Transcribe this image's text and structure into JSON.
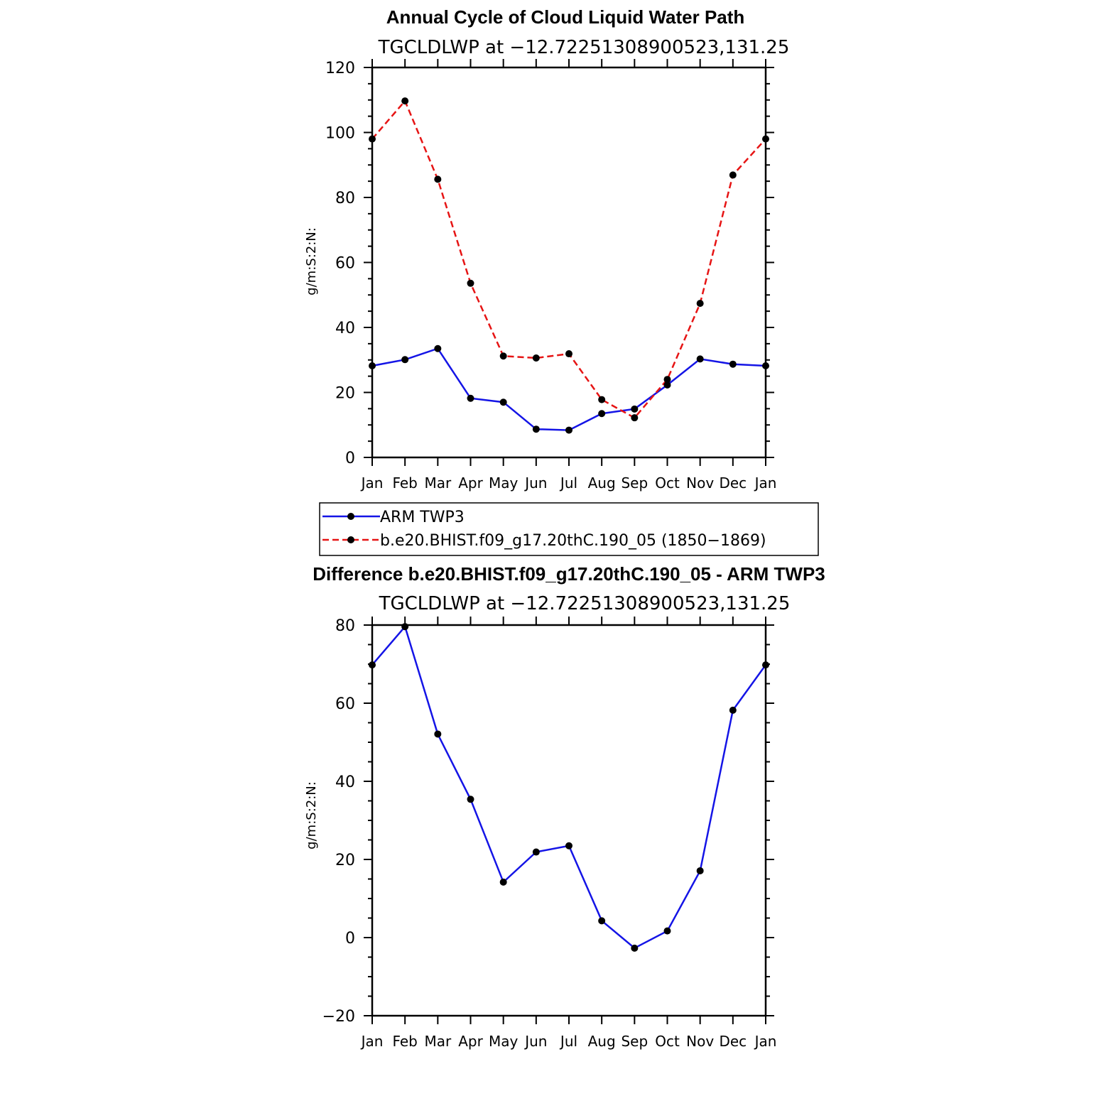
{
  "colors": {
    "obs": "#1414e6",
    "model": "#e61414",
    "marker": "#000000",
    "axis": "#000000"
  },
  "chart_data": [
    {
      "type": "line",
      "title": "Annual Cycle of Cloud Liquid Water Path",
      "subtitle": "TGCLDLWP  at  −12.72251308900523,131.25",
      "ylabel": "g/m:S:2:N:",
      "xlabel": "",
      "categories": [
        "Jan",
        "Feb",
        "Mar",
        "Apr",
        "May",
        "Jun",
        "Jul",
        "Aug",
        "Sep",
        "Oct",
        "Nov",
        "Dec",
        "Jan"
      ],
      "ylim": [
        0,
        120
      ],
      "yticks": [
        0,
        20,
        40,
        60,
        80,
        100,
        120
      ],
      "ytick_labels": [
        "0",
        "20",
        "40",
        "60",
        "80",
        "100",
        "120"
      ],
      "grid": false,
      "legend_placement": "below",
      "series": [
        {
          "name": "ARM TWP3",
          "style": "solid",
          "color": "#1414e6",
          "values": [
            28.2,
            30.1,
            33.5,
            18.2,
            17.0,
            8.7,
            8.4,
            13.5,
            14.9,
            22.3,
            30.3,
            28.7,
            28.2
          ]
        },
        {
          "name": "b.e20.BHIST.f09_g17.20thC.190_05 (1850−1869)",
          "style": "dashed",
          "color": "#e61414",
          "values": [
            98.0,
            109.7,
            85.6,
            53.6,
            31.2,
            30.6,
            31.9,
            17.8,
            12.2,
            24.0,
            47.4,
            86.9,
            98.0
          ]
        }
      ]
    },
    {
      "type": "line",
      "title": "Difference b.e20.BHIST.f09_g17.20thC.190_05 - ARM TWP3",
      "subtitle": "TGCLDLWP  at  −12.72251308900523,131.25",
      "ylabel": "g/m:S:2:N:",
      "xlabel": "",
      "categories": [
        "Jan",
        "Feb",
        "Mar",
        "Apr",
        "May",
        "Jun",
        "Jul",
        "Aug",
        "Sep",
        "Oct",
        "Nov",
        "Dec",
        "Jan"
      ],
      "ylim": [
        -20,
        80
      ],
      "yticks": [
        -20,
        0,
        20,
        40,
        60,
        80
      ],
      "ytick_labels": [
        "−20",
        "0",
        "20",
        "40",
        "60",
        "80"
      ],
      "grid": false,
      "series": [
        {
          "style": "solid",
          "color": "#1414e6",
          "values": [
            69.8,
            79.6,
            52.1,
            35.4,
            14.2,
            21.9,
            23.5,
            4.3,
            -2.7,
            1.7,
            17.1,
            58.2,
            69.8
          ]
        }
      ]
    }
  ]
}
